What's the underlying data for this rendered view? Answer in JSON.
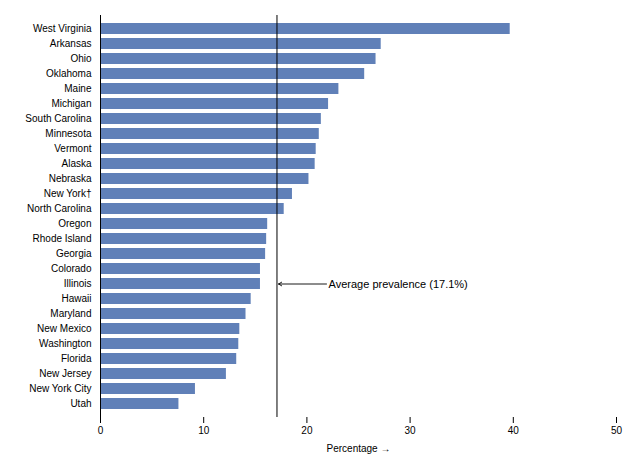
{
  "chart_data": {
    "type": "bar",
    "orientation": "horizontal",
    "categories": [
      "West Virginia",
      "Arkansas",
      "Ohio",
      "Oklahoma",
      "Maine",
      "Michigan",
      "South Carolina",
      "Minnesota",
      "Vermont",
      "Alaska",
      "Nebraska",
      "New York†",
      "North Carolina",
      "Oregon",
      "Rhode Island",
      "Georgia",
      "Colorado",
      "Illinois",
      "Hawaii",
      "Maryland",
      "New Mexico",
      "Washington",
      "Florida",
      "New Jersey",
      "New York City",
      "Utah"
    ],
    "values": [
      39.7,
      27.2,
      26.7,
      25.6,
      23.1,
      22.1,
      21.4,
      21.2,
      20.9,
      20.8,
      20.2,
      18.6,
      17.8,
      16.2,
      16.1,
      16.0,
      15.5,
      15.5,
      14.6,
      14.1,
      13.5,
      13.4,
      13.2,
      12.2,
      9.2,
      7.6
    ],
    "color": "#6080b8",
    "xlabel": "Percentage",
    "xlim": [
      0,
      50
    ],
    "xticks": [
      0,
      10,
      20,
      30,
      40,
      50
    ],
    "vline": 17.1,
    "annotation": "Average prevalence (17.1%)"
  }
}
